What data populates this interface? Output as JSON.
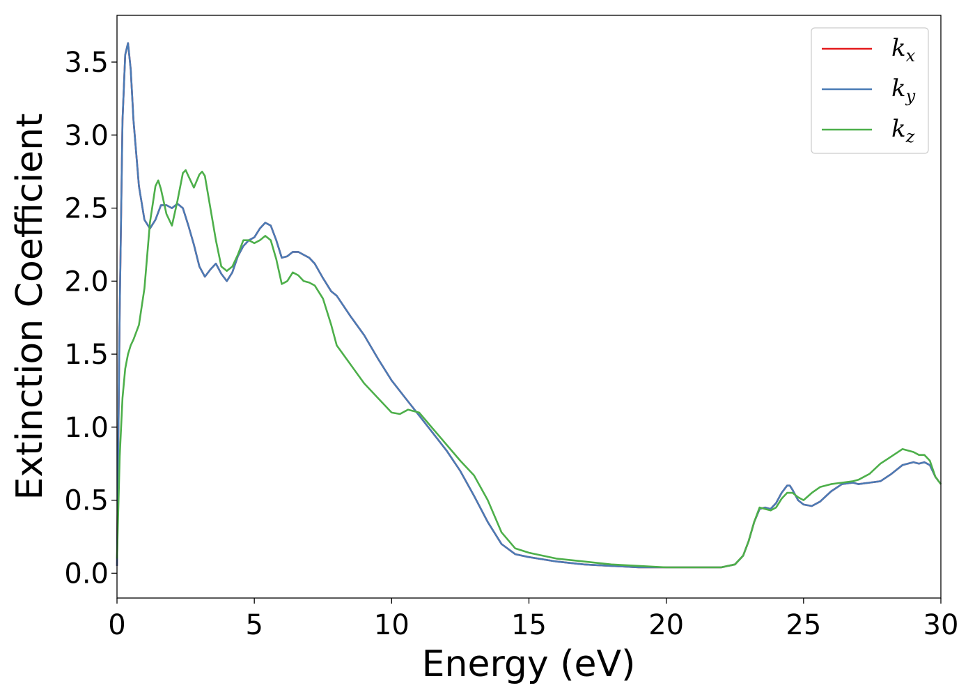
{
  "chart_data": {
    "type": "line",
    "title": "",
    "xlabel": "Energy (eV)",
    "ylabel": "Extinction Coefficient",
    "xlim": [
      0,
      30
    ],
    "ylim": [
      -0.17,
      3.82
    ],
    "xticks": [
      0,
      5,
      10,
      15,
      20,
      25,
      30
    ],
    "xtick_labels": [
      "0",
      "5",
      "10",
      "15",
      "20",
      "25",
      "30"
    ],
    "yticks": [
      0.0,
      0.5,
      1.0,
      1.5,
      2.0,
      2.5,
      3.0,
      3.5
    ],
    "ytick_labels": [
      "0.0",
      "0.5",
      "1.0",
      "1.5",
      "2.0",
      "2.5",
      "3.0",
      "3.5"
    ],
    "grid": false,
    "legend_position": "top-right",
    "series": [
      {
        "name": "k_x",
        "label_base": "k",
        "label_sub": "x",
        "color": "#e41a1c",
        "x": [
          0,
          0.1,
          0.2,
          0.3,
          0.4,
          0.5,
          0.6,
          0.8,
          1.0,
          1.2,
          1.4,
          1.6,
          1.8,
          2.0,
          2.2,
          2.4,
          2.6,
          2.8,
          3.0,
          3.2,
          3.4,
          3.6,
          3.8,
          4.0,
          4.2,
          4.4,
          4.6,
          4.8,
          5.0,
          5.2,
          5.4,
          5.6,
          5.8,
          6.0,
          6.2,
          6.4,
          6.6,
          6.8,
          7.0,
          7.2,
          7.5,
          7.8,
          8.0,
          8.5,
          9.0,
          9.5,
          10.0,
          10.5,
          11.0,
          11.5,
          12.0,
          12.5,
          13.0,
          13.5,
          14.0,
          14.5,
          15.0,
          16.0,
          17.0,
          18.0,
          19.0,
          20.0,
          21.0,
          22.0,
          22.5,
          22.8,
          23.0,
          23.2,
          23.4,
          23.6,
          23.8,
          24.0,
          24.2,
          24.4,
          24.5,
          24.6,
          24.8,
          25.0,
          25.3,
          25.6,
          26.0,
          26.4,
          26.8,
          27.0,
          27.4,
          27.8,
          28.2,
          28.6,
          29.0,
          29.2,
          29.4,
          29.6,
          29.8,
          30.0
        ],
        "values": [
          0.05,
          1.8,
          3.1,
          3.55,
          3.63,
          3.45,
          3.1,
          2.65,
          2.42,
          2.36,
          2.42,
          2.52,
          2.52,
          2.5,
          2.53,
          2.5,
          2.38,
          2.25,
          2.1,
          2.03,
          2.08,
          2.12,
          2.05,
          2.0,
          2.06,
          2.17,
          2.24,
          2.28,
          2.3,
          2.36,
          2.4,
          2.38,
          2.28,
          2.16,
          2.17,
          2.2,
          2.2,
          2.18,
          2.16,
          2.12,
          2.02,
          1.93,
          1.9,
          1.76,
          1.63,
          1.47,
          1.32,
          1.2,
          1.08,
          0.96,
          0.84,
          0.7,
          0.53,
          0.35,
          0.2,
          0.13,
          0.11,
          0.08,
          0.06,
          0.05,
          0.04,
          0.04,
          0.04,
          0.04,
          0.06,
          0.12,
          0.22,
          0.35,
          0.44,
          0.45,
          0.44,
          0.48,
          0.55,
          0.6,
          0.6,
          0.57,
          0.5,
          0.47,
          0.46,
          0.49,
          0.56,
          0.61,
          0.62,
          0.61,
          0.62,
          0.63,
          0.68,
          0.74,
          0.76,
          0.75,
          0.76,
          0.74,
          0.66,
          0.61
        ]
      },
      {
        "name": "k_y",
        "label_base": "k",
        "label_sub": "y",
        "color": "#4a7bb5",
        "x": [
          0,
          0.1,
          0.2,
          0.3,
          0.4,
          0.5,
          0.6,
          0.8,
          1.0,
          1.2,
          1.4,
          1.6,
          1.8,
          2.0,
          2.2,
          2.4,
          2.6,
          2.8,
          3.0,
          3.2,
          3.4,
          3.6,
          3.8,
          4.0,
          4.2,
          4.4,
          4.6,
          4.8,
          5.0,
          5.2,
          5.4,
          5.6,
          5.8,
          6.0,
          6.2,
          6.4,
          6.6,
          6.8,
          7.0,
          7.2,
          7.5,
          7.8,
          8.0,
          8.5,
          9.0,
          9.5,
          10.0,
          10.5,
          11.0,
          11.5,
          12.0,
          12.5,
          13.0,
          13.5,
          14.0,
          14.5,
          15.0,
          16.0,
          17.0,
          18.0,
          19.0,
          20.0,
          21.0,
          22.0,
          22.5,
          22.8,
          23.0,
          23.2,
          23.4,
          23.6,
          23.8,
          24.0,
          24.2,
          24.4,
          24.5,
          24.6,
          24.8,
          25.0,
          25.3,
          25.6,
          26.0,
          26.4,
          26.8,
          27.0,
          27.4,
          27.8,
          28.2,
          28.6,
          29.0,
          29.2,
          29.4,
          29.6,
          29.8,
          30.0
        ],
        "values": [
          0.05,
          1.8,
          3.1,
          3.55,
          3.63,
          3.45,
          3.1,
          2.65,
          2.42,
          2.36,
          2.42,
          2.52,
          2.52,
          2.5,
          2.53,
          2.5,
          2.38,
          2.25,
          2.1,
          2.03,
          2.08,
          2.12,
          2.05,
          2.0,
          2.06,
          2.17,
          2.24,
          2.28,
          2.3,
          2.36,
          2.4,
          2.38,
          2.28,
          2.16,
          2.17,
          2.2,
          2.2,
          2.18,
          2.16,
          2.12,
          2.02,
          1.93,
          1.9,
          1.76,
          1.63,
          1.47,
          1.32,
          1.2,
          1.08,
          0.96,
          0.84,
          0.7,
          0.53,
          0.35,
          0.2,
          0.13,
          0.11,
          0.08,
          0.06,
          0.05,
          0.04,
          0.04,
          0.04,
          0.04,
          0.06,
          0.12,
          0.22,
          0.35,
          0.44,
          0.45,
          0.44,
          0.48,
          0.55,
          0.6,
          0.6,
          0.57,
          0.5,
          0.47,
          0.46,
          0.49,
          0.56,
          0.61,
          0.62,
          0.61,
          0.62,
          0.63,
          0.68,
          0.74,
          0.76,
          0.75,
          0.76,
          0.74,
          0.66,
          0.61
        ]
      },
      {
        "name": "k_z",
        "label_base": "k",
        "label_sub": "z",
        "color": "#4daf4a",
        "x": [
          0,
          0.1,
          0.2,
          0.3,
          0.4,
          0.5,
          0.6,
          0.8,
          1.0,
          1.2,
          1.4,
          1.5,
          1.6,
          1.8,
          2.0,
          2.2,
          2.4,
          2.5,
          2.6,
          2.8,
          3.0,
          3.1,
          3.2,
          3.4,
          3.6,
          3.8,
          4.0,
          4.2,
          4.4,
          4.6,
          4.8,
          5.0,
          5.2,
          5.4,
          5.6,
          5.8,
          6.0,
          6.2,
          6.4,
          6.6,
          6.8,
          7.0,
          7.2,
          7.5,
          7.8,
          8.0,
          8.5,
          9.0,
          9.5,
          10.0,
          10.3,
          10.6,
          11.0,
          11.5,
          12.0,
          12.5,
          13.0,
          13.5,
          14.0,
          14.5,
          15.0,
          16.0,
          17.0,
          18.0,
          19.0,
          20.0,
          21.0,
          22.0,
          22.5,
          22.8,
          23.0,
          23.2,
          23.4,
          23.6,
          23.8,
          24.0,
          24.2,
          24.4,
          24.6,
          24.8,
          25.0,
          25.3,
          25.6,
          26.0,
          26.4,
          26.8,
          27.0,
          27.4,
          27.8,
          28.2,
          28.6,
          29.0,
          29.2,
          29.4,
          29.6,
          29.8,
          30.0
        ],
        "values": [
          0.1,
          0.8,
          1.2,
          1.4,
          1.5,
          1.56,
          1.6,
          1.7,
          1.95,
          2.4,
          2.65,
          2.69,
          2.63,
          2.46,
          2.38,
          2.55,
          2.74,
          2.76,
          2.72,
          2.64,
          2.73,
          2.75,
          2.72,
          2.5,
          2.28,
          2.1,
          2.07,
          2.1,
          2.18,
          2.28,
          2.28,
          2.26,
          2.28,
          2.31,
          2.28,
          2.15,
          1.98,
          2.0,
          2.06,
          2.04,
          2.0,
          1.99,
          1.97,
          1.88,
          1.7,
          1.56,
          1.43,
          1.3,
          1.2,
          1.1,
          1.09,
          1.12,
          1.1,
          0.99,
          0.88,
          0.77,
          0.67,
          0.5,
          0.28,
          0.17,
          0.14,
          0.1,
          0.08,
          0.06,
          0.05,
          0.04,
          0.04,
          0.04,
          0.06,
          0.12,
          0.22,
          0.35,
          0.45,
          0.44,
          0.43,
          0.45,
          0.51,
          0.55,
          0.55,
          0.52,
          0.5,
          0.55,
          0.59,
          0.61,
          0.62,
          0.63,
          0.64,
          0.68,
          0.75,
          0.8,
          0.85,
          0.83,
          0.81,
          0.81,
          0.77,
          0.66,
          0.61
        ]
      }
    ]
  }
}
